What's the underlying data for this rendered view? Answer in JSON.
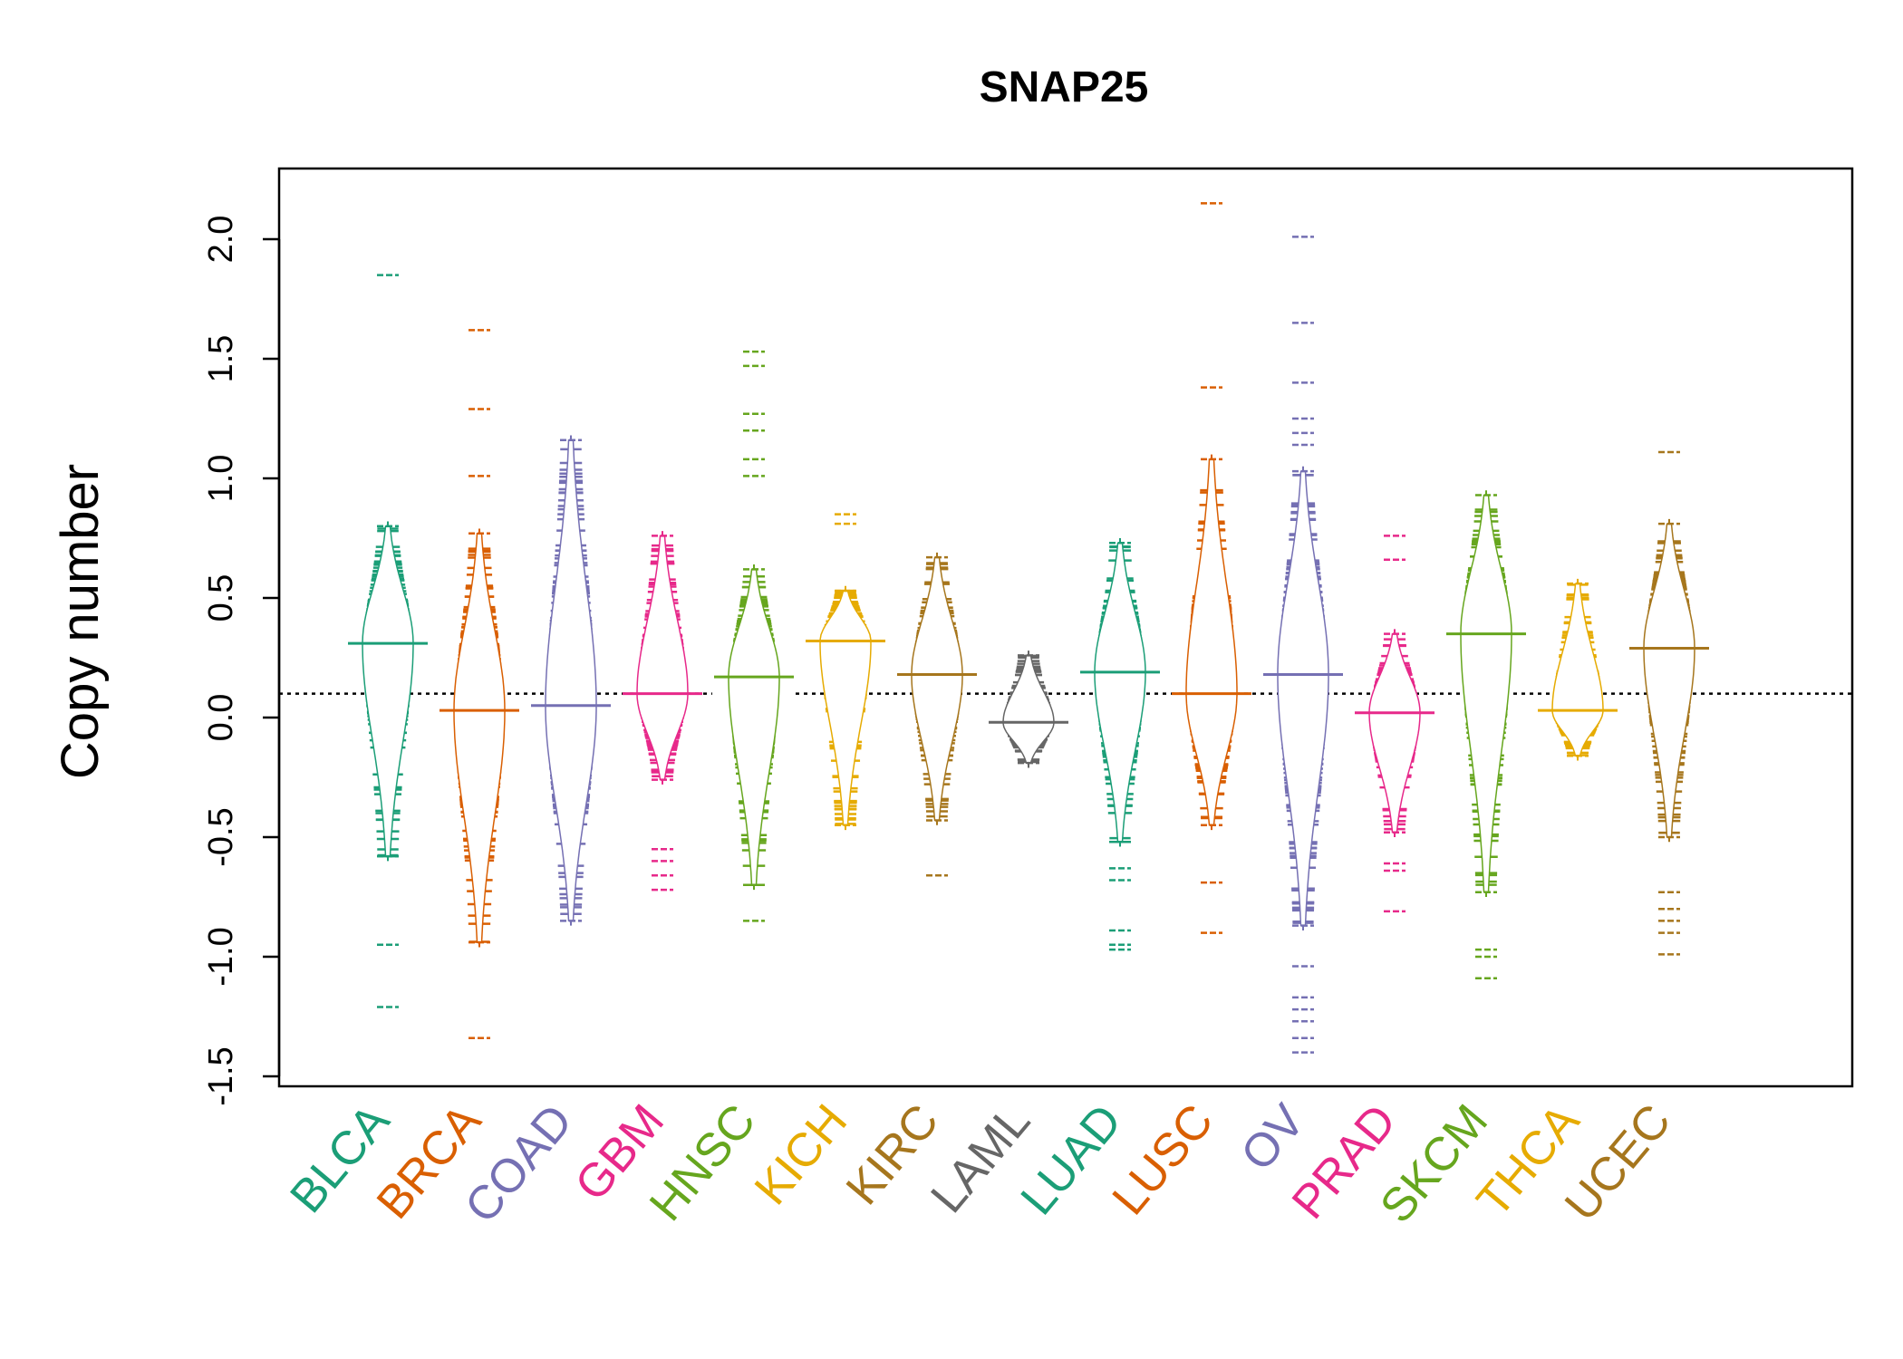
{
  "chart_data": {
    "type": "bean",
    "title": "SNAP25",
    "ylabel": "Copy number",
    "xlabel": "",
    "ylim": [
      -1.5,
      2.2
    ],
    "yticks": [
      -1.5,
      -1.0,
      -0.5,
      0.0,
      0.5,
      1.0,
      1.5,
      2.0
    ],
    "ytick_labels": [
      "-1.5",
      "-1.0",
      "-0.5",
      "0.0",
      "0.5",
      "1.0",
      "1.5",
      "2.0"
    ],
    "reference_line": 0.1,
    "grid": false,
    "legend": "none",
    "categories": [
      "BLCA",
      "BRCA",
      "COAD",
      "GBM",
      "HNSC",
      "KICH",
      "KIRC",
      "LAML",
      "LUAD",
      "LUSC",
      "OV",
      "PRAD",
      "SKCM",
      "THCA",
      "UCEC"
    ],
    "series": [
      {
        "category": "BLCA",
        "color": "#1b9e77",
        "mean": 0.31,
        "min": -0.58,
        "max": 0.8,
        "outliers": [
          1.85,
          -0.95,
          -1.21
        ]
      },
      {
        "category": "BRCA",
        "color": "#d95f02",
        "mean": 0.03,
        "min": -0.94,
        "max": 0.77,
        "outliers": [
          1.62,
          1.29,
          1.01,
          -1.34
        ]
      },
      {
        "category": "COAD",
        "color": "#7570b3",
        "mean": 0.05,
        "min": -0.85,
        "max": 1.16,
        "outliers": []
      },
      {
        "category": "GBM",
        "color": "#e7298a",
        "mean": 0.1,
        "min": -0.26,
        "max": 0.76,
        "outliers": [
          -0.55,
          -0.6,
          -0.66,
          -0.72
        ]
      },
      {
        "category": "HNSC",
        "color": "#66a61e",
        "mean": 0.17,
        "min": -0.7,
        "max": 0.62,
        "outliers": [
          1.53,
          1.47,
          1.27,
          1.2,
          1.08,
          1.01,
          -0.85
        ]
      },
      {
        "category": "KICH",
        "color": "#e6ab02",
        "mean": 0.32,
        "min": -0.45,
        "max": 0.53,
        "outliers": [
          0.85,
          0.81
        ]
      },
      {
        "category": "KIRC",
        "color": "#a6761d",
        "mean": 0.18,
        "min": -0.43,
        "max": 0.67,
        "outliers": [
          -0.66
        ]
      },
      {
        "category": "LAML",
        "color": "#666666",
        "mean": -0.02,
        "min": -0.19,
        "max": 0.26,
        "outliers": []
      },
      {
        "category": "LUAD",
        "color": "#1b9e77",
        "mean": 0.19,
        "min": -0.52,
        "max": 0.73,
        "outliers": [
          -0.63,
          -0.68,
          -0.89,
          -0.95,
          -0.97
        ]
      },
      {
        "category": "LUSC",
        "color": "#d95f02",
        "mean": 0.1,
        "min": -0.45,
        "max": 1.08,
        "outliers": [
          2.15,
          1.38,
          -0.69,
          -0.9
        ]
      },
      {
        "category": "OV",
        "color": "#7570b3",
        "mean": 0.18,
        "min": -0.87,
        "max": 1.03,
        "outliers": [
          2.01,
          1.65,
          1.4,
          1.25,
          1.19,
          1.14,
          -1.04,
          -1.17,
          -1.22,
          -1.27,
          -1.34,
          -1.4
        ]
      },
      {
        "category": "PRAD",
        "color": "#e7298a",
        "mean": 0.02,
        "min": -0.48,
        "max": 0.35,
        "outliers": [
          0.76,
          0.66,
          -0.61,
          -0.64,
          -0.81
        ]
      },
      {
        "category": "SKCM",
        "color": "#66a61e",
        "mean": 0.35,
        "min": -0.73,
        "max": 0.93,
        "outliers": [
          -0.97,
          -1.0,
          -1.09
        ]
      },
      {
        "category": "THCA",
        "color": "#e6ab02",
        "mean": 0.03,
        "min": -0.16,
        "max": 0.56,
        "outliers": []
      },
      {
        "category": "UCEC",
        "color": "#a6761d",
        "mean": 0.29,
        "min": -0.5,
        "max": 0.81,
        "outliers": [
          1.11,
          -0.73,
          -0.8,
          -0.85,
          -0.9,
          -0.99
        ]
      }
    ]
  }
}
